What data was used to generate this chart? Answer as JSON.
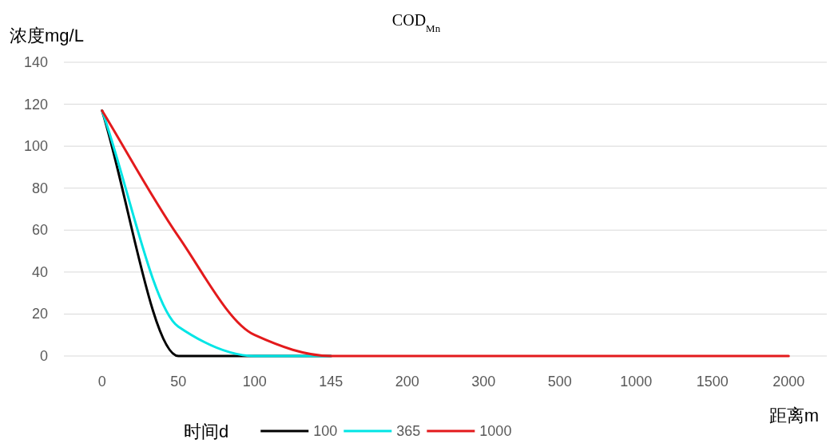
{
  "chart_data": {
    "type": "line",
    "title": "COD$_{Mn}$",
    "xlabel": "距离m",
    "ylabel": "浓度mg/L",
    "legend_title": "时间d",
    "categories": [
      "0",
      "50",
      "100",
      "145",
      "200",
      "300",
      "500",
      "1000",
      "1500",
      "2000"
    ],
    "series": [
      {
        "name": "100",
        "color": "#000000",
        "values": [
          117,
          0,
          0,
          0,
          null,
          null,
          null,
          null,
          null,
          null
        ]
      },
      {
        "name": "365",
        "color": "#00e5e5",
        "values": [
          117,
          14,
          0,
          0,
          null,
          null,
          null,
          null,
          null,
          null
        ]
      },
      {
        "name": "1000",
        "color": "#e31a1c",
        "values": [
          117,
          57,
          10,
          0,
          0,
          0,
          0,
          0,
          0,
          0
        ]
      }
    ],
    "ylim": [
      0,
      140
    ],
    "yticks": [
      0,
      20,
      40,
      60,
      80,
      100,
      120,
      140
    ],
    "grid": "y",
    "legend": "bottom",
    "line_style": "solid",
    "marker": "none"
  }
}
